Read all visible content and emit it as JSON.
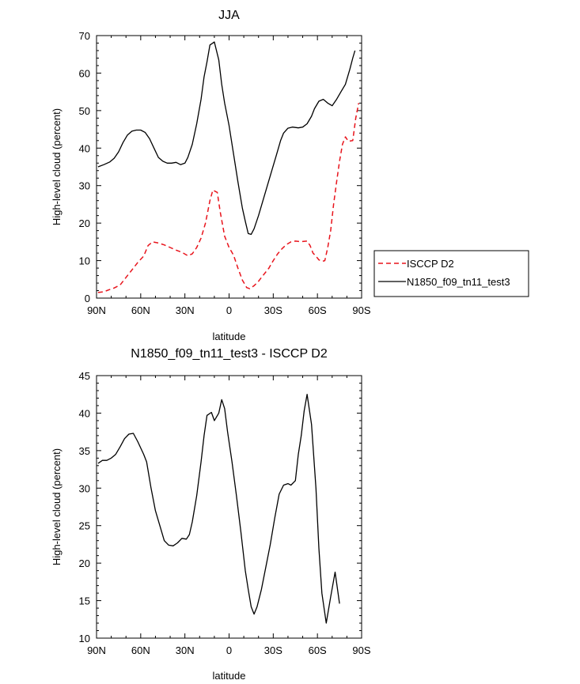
{
  "chart_data": [
    {
      "type": "line",
      "title": "JJA",
      "xlabel": "latitude",
      "ylabel": "High-level cloud (percent)",
      "xlim": [
        90,
        -90
      ],
      "ylim": [
        0,
        70
      ],
      "x_ticks": [
        90,
        60,
        30,
        0,
        -30,
        -60,
        -90
      ],
      "x_tick_labels": [
        "90N",
        "60N",
        "30N",
        "0",
        "30S",
        "60S",
        "90S"
      ],
      "y_ticks": [
        0,
        10,
        20,
        30,
        40,
        50,
        60,
        70
      ],
      "y_tick_labels": [
        "0",
        "10",
        "20",
        "30",
        "40",
        "50",
        "60",
        "70"
      ],
      "legend_placement": "outside-right",
      "series": [
        {
          "name": "ISCCP D2",
          "color": "#e8141c",
          "dash": "dashed",
          "points": [
            [
              89,
              1.5
            ],
            [
              85,
              1.7
            ],
            [
              81,
              2.3
            ],
            [
              78,
              2.7
            ],
            [
              74,
              3.5
            ],
            [
              70,
              5.5
            ],
            [
              66,
              7.5
            ],
            [
              62,
              9.5
            ],
            [
              58,
              11.2
            ],
            [
              55,
              14
            ],
            [
              52,
              15
            ],
            [
              48,
              14.7
            ],
            [
              44,
              14.2
            ],
            [
              40,
              13.5
            ],
            [
              36,
              12.8
            ],
            [
              32,
              12.2
            ],
            [
              28,
              11.3
            ],
            [
              25,
              11.8
            ],
            [
              22,
              13.5
            ],
            [
              19,
              16
            ],
            [
              16,
              20
            ],
            [
              13,
              26
            ],
            [
              11,
              28.8
            ],
            [
              8,
              28.2
            ],
            [
              6,
              23
            ],
            [
              3,
              16.5
            ],
            [
              0,
              13.5
            ],
            [
              -3,
              11.5
            ],
            [
              -6,
              8
            ],
            [
              -9,
              4.8
            ],
            [
              -12,
              2.8
            ],
            [
              -14,
              2.5
            ],
            [
              -17,
              3.3
            ],
            [
              -20,
              4.5
            ],
            [
              -23,
              6
            ],
            [
              -27,
              8
            ],
            [
              -30,
              10
            ],
            [
              -33,
              11.8
            ],
            [
              -36,
              13.2
            ],
            [
              -39,
              14.3
            ],
            [
              -42,
              15
            ],
            [
              -45,
              15.2
            ],
            [
              -48,
              15.1
            ],
            [
              -50,
              15.1
            ],
            [
              -53,
              15.2
            ],
            [
              -55,
              14
            ],
            [
              -57,
              12
            ],
            [
              -59,
              11.2
            ],
            [
              -61,
              10.2
            ],
            [
              -63,
              9.8
            ],
            [
              -65,
              10
            ],
            [
              -67,
              13.5
            ],
            [
              -69,
              18
            ],
            [
              -71,
              25
            ],
            [
              -73,
              31
            ],
            [
              -75,
              36.5
            ],
            [
              -77,
              41
            ],
            [
              -79,
              43
            ],
            [
              -81,
              41.8
            ],
            [
              -84,
              42
            ],
            [
              -86,
              48
            ],
            [
              -88,
              52
            ]
          ]
        },
        {
          "name": "N1850_f09_tn11_test3",
          "color": "#000000",
          "dash": "solid",
          "points": [
            [
              89,
              35
            ],
            [
              85,
              35.6
            ],
            [
              81,
              36.3
            ],
            [
              78,
              37.3
            ],
            [
              75,
              39
            ],
            [
              72,
              41.5
            ],
            [
              69,
              43.5
            ],
            [
              66,
              44.5
            ],
            [
              63,
              44.8
            ],
            [
              60,
              44.8
            ],
            [
              57,
              44.2
            ],
            [
              54,
              42.5
            ],
            [
              51,
              40
            ],
            [
              48,
              37.5
            ],
            [
              45,
              36.5
            ],
            [
              42,
              36
            ],
            [
              39,
              36
            ],
            [
              36,
              36.2
            ],
            [
              33,
              35.6
            ],
            [
              30,
              36
            ],
            [
              28,
              37.5
            ],
            [
              25,
              41
            ],
            [
              22,
              46.5
            ],
            [
              19,
              53
            ],
            [
              17,
              59
            ],
            [
              15,
              63
            ],
            [
              13,
              67.5
            ],
            [
              10,
              68.3
            ],
            [
              7,
              63.5
            ],
            [
              5,
              57
            ],
            [
              3,
              52
            ],
            [
              0,
              46
            ],
            [
              -3,
              38.5
            ],
            [
              -6,
              31
            ],
            [
              -9,
              24
            ],
            [
              -11,
              20.5
            ],
            [
              -13,
              17.2
            ],
            [
              -15,
              17
            ],
            [
              -17,
              18.5
            ],
            [
              -20,
              22
            ],
            [
              -23,
              26
            ],
            [
              -26,
              30
            ],
            [
              -29,
              34
            ],
            [
              -32,
              38
            ],
            [
              -35,
              42
            ],
            [
              -37,
              44
            ],
            [
              -40,
              45.3
            ],
            [
              -43,
              45.6
            ],
            [
              -47,
              45.4
            ],
            [
              -50,
              45.6
            ],
            [
              -53,
              46.5
            ],
            [
              -56,
              48.5
            ],
            [
              -58,
              50.5
            ],
            [
              -61,
              52.5
            ],
            [
              -64,
              53
            ],
            [
              -67,
              52
            ],
            [
              -70,
              51.3
            ],
            [
              -73,
              53
            ],
            [
              -76,
              55
            ],
            [
              -79,
              57
            ],
            [
              -82,
              61
            ],
            [
              -84,
              64
            ],
            [
              -85.5,
              66
            ]
          ]
        }
      ]
    },
    {
      "type": "line",
      "title": "N1850_f09_tn11_test3 - ISCCP D2",
      "xlabel": "latitude",
      "ylabel": "High-level cloud (percent)",
      "xlim": [
        90,
        -90
      ],
      "ylim": [
        10,
        45
      ],
      "x_ticks": [
        90,
        60,
        30,
        0,
        -30,
        -60,
        -90
      ],
      "x_tick_labels": [
        "90N",
        "60N",
        "30N",
        "0",
        "30S",
        "60S",
        "90S"
      ],
      "y_ticks": [
        10,
        15,
        20,
        25,
        30,
        35,
        40,
        45
      ],
      "y_tick_labels": [
        "10",
        "15",
        "20",
        "25",
        "30",
        "35",
        "40",
        "45"
      ],
      "series": [
        {
          "color": "#000000",
          "dash": "solid",
          "points": [
            [
              89,
              33.3
            ],
            [
              86,
              33.7
            ],
            [
              83,
              33.7
            ],
            [
              80,
              34
            ],
            [
              77,
              34.5
            ],
            [
              74,
              35.5
            ],
            [
              71,
              36.6
            ],
            [
              68,
              37.2
            ],
            [
              65,
              37.3
            ],
            [
              62,
              36.2
            ],
            [
              58,
              34.5
            ],
            [
              56,
              33.5
            ],
            [
              53,
              30
            ],
            [
              50,
              27
            ],
            [
              47,
              25
            ],
            [
              44,
              23
            ],
            [
              41,
              22.4
            ],
            [
              38,
              22.3
            ],
            [
              35,
              22.7
            ],
            [
              32,
              23.3
            ],
            [
              29,
              23.2
            ],
            [
              27,
              23.8
            ],
            [
              25,
              25.5
            ],
            [
              22,
              29
            ],
            [
              19,
              33.5
            ],
            [
              17,
              37
            ],
            [
              15,
              39.7
            ],
            [
              12,
              40.1
            ],
            [
              10,
              39
            ],
            [
              7,
              40
            ],
            [
              5,
              41.8
            ],
            [
              3,
              40.6
            ],
            [
              1,
              37.5
            ],
            [
              -2,
              33.5
            ],
            [
              -5,
              29
            ],
            [
              -8,
              24.2
            ],
            [
              -11,
              19
            ],
            [
              -13,
              16.5
            ],
            [
              -15,
              14.2
            ],
            [
              -17,
              13.2
            ],
            [
              -19,
              14.2
            ],
            [
              -22,
              16.5
            ],
            [
              -25,
              19.5
            ],
            [
              -28,
              22.5
            ],
            [
              -31,
              26
            ],
            [
              -34,
              29.2
            ],
            [
              -37,
              30.4
            ],
            [
              -40,
              30.6
            ],
            [
              -42,
              30.4
            ],
            [
              -45,
              31
            ],
            [
              -47,
              34.5
            ],
            [
              -49,
              37
            ],
            [
              -51,
              40.3
            ],
            [
              -53,
              42.5
            ],
            [
              -56,
              38.5
            ],
            [
              -59,
              30
            ],
            [
              -61,
              22
            ],
            [
              -63,
              16
            ],
            [
              -66,
              12
            ],
            [
              -69,
              15.5
            ],
            [
              -72,
              18.8
            ],
            [
              -75,
              14.6
            ]
          ]
        }
      ]
    }
  ]
}
